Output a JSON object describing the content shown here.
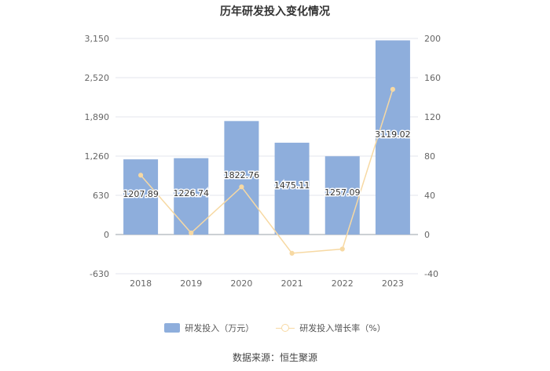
{
  "chart_data": {
    "type": "bar",
    "title": "历年研发投入变化情况",
    "categories": [
      "2018",
      "2019",
      "2020",
      "2021",
      "2022",
      "2023"
    ],
    "series": [
      {
        "name": "研发投入（万元）",
        "type": "bar",
        "axis": "left",
        "values": [
          1207.89,
          1226.74,
          1822.76,
          1475.11,
          1257.09,
          3119.02
        ],
        "labels": [
          "1207.89",
          "1226.74",
          "1822.76",
          "1475.11",
          "1257.09",
          "3119.02"
        ],
        "color": "#8eaedc"
      },
      {
        "name": "研发投入增长率（%）",
        "type": "line",
        "axis": "right",
        "values": [
          60.5,
          1.6,
          48.6,
          -19.1,
          -14.8,
          148.1
        ],
        "color": "#f7d9a3"
      }
    ],
    "left_axis": {
      "ticks": [
        "3,150",
        "2,520",
        "1,890",
        "1,260",
        "630",
        "0",
        "-630"
      ],
      "min": -630,
      "max": 3150
    },
    "right_axis": {
      "ticks": [
        "200",
        "160",
        "120",
        "80",
        "40",
        "0",
        "-40"
      ],
      "min": -40,
      "max": 200
    },
    "grid": true,
    "legend_position": "bottom"
  },
  "source": "数据来源：恒生聚源"
}
